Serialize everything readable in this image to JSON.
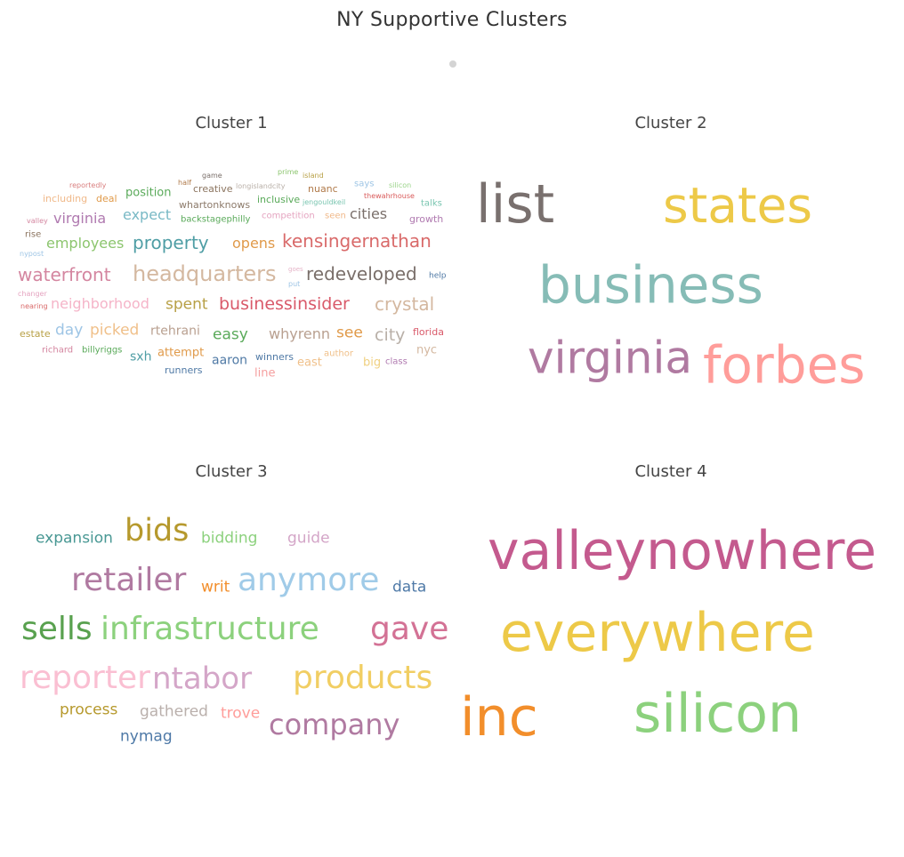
{
  "page": {
    "title": "NY Supportive Clusters"
  },
  "clusters": [
    {
      "title": "Cluster 1",
      "words": [
        {
          "text": "reportedly",
          "color": "#d97f7f"
        },
        {
          "text": "game",
          "color": "#7a6f6a"
        },
        {
          "text": "prime",
          "color": "#8cc56e"
        },
        {
          "text": "island",
          "color": "#b8a046"
        },
        {
          "text": "half",
          "color": "#b07a4a"
        },
        {
          "text": "creative",
          "color": "#8c7560"
        },
        {
          "text": "longislandcity",
          "color": "#b9b0a8"
        },
        {
          "text": "nuanc",
          "color": "#b07a4a"
        },
        {
          "text": "says",
          "color": "#9ec5e5"
        },
        {
          "text": "silicon",
          "color": "#9bd48a"
        },
        {
          "text": "including",
          "color": "#f0b98a"
        },
        {
          "text": "deal",
          "color": "#e09a4a"
        },
        {
          "text": "position",
          "color": "#5aaa5a"
        },
        {
          "text": "whartonknows",
          "color": "#8c7a6a"
        },
        {
          "text": "inclusive",
          "color": "#5aaa5a"
        },
        {
          "text": "jengouldkeil",
          "color": "#79c5b0"
        },
        {
          "text": "thewahrhouse",
          "color": "#d95a5a"
        },
        {
          "text": "talks",
          "color": "#79c5b0"
        },
        {
          "text": "valley",
          "color": "#d486a0"
        },
        {
          "text": "virginia",
          "color": "#b07ab0"
        },
        {
          "text": "expect",
          "color": "#79b9c5"
        },
        {
          "text": "backstagephilly",
          "color": "#5aaa5a"
        },
        {
          "text": "competition",
          "color": "#e5a4c0"
        },
        {
          "text": "seen",
          "color": "#f0b98a"
        },
        {
          "text": "cities",
          "color": "#7a6f6a"
        },
        {
          "text": "growth",
          "color": "#b07ab0"
        },
        {
          "text": "rise",
          "color": "#8c7560"
        },
        {
          "text": "employees",
          "color": "#8cc56e"
        },
        {
          "text": "property",
          "color": "#4f9ea5"
        },
        {
          "text": "opens",
          "color": "#e09a4a"
        },
        {
          "text": "kensingernathan",
          "color": "#d96a6a"
        },
        {
          "text": "nypost",
          "color": "#9ec5e5"
        },
        {
          "text": "waterfront",
          "color": "#d486a0"
        },
        {
          "text": "headquarters",
          "color": "#d4b8a0"
        },
        {
          "text": "goes",
          "color": "#e5b4c8"
        },
        {
          "text": "put",
          "color": "#9ec5e5"
        },
        {
          "text": "redeveloped",
          "color": "#7a6f6a"
        },
        {
          "text": "help",
          "color": "#4f79a5"
        },
        {
          "text": "changer",
          "color": "#e5a4c0"
        },
        {
          "text": "nearing",
          "color": "#d96a6a"
        },
        {
          "text": "neighborhood",
          "color": "#f5b4c8"
        },
        {
          "text": "spent",
          "color": "#b8a046"
        },
        {
          "text": "businessinsider",
          "color": "#d95a6a"
        },
        {
          "text": "crystal",
          "color": "#d4b8a0"
        },
        {
          "text": "estate",
          "color": "#b8a046"
        },
        {
          "text": "day",
          "color": "#9ec5e5"
        },
        {
          "text": "picked",
          "color": "#f0c08a"
        },
        {
          "text": "rtehrani",
          "color": "#b9a090"
        },
        {
          "text": "easy",
          "color": "#5aaa5a"
        },
        {
          "text": "whyrenn",
          "color": "#b9a090"
        },
        {
          "text": "see",
          "color": "#e09a4a"
        },
        {
          "text": "city",
          "color": "#b9b0a8"
        },
        {
          "text": "florida",
          "color": "#d95a6a"
        },
        {
          "text": "richard",
          "color": "#d486a0"
        },
        {
          "text": "billyriggs",
          "color": "#5aaa5a"
        },
        {
          "text": "sxh",
          "color": "#4f9ea5"
        },
        {
          "text": "attempt",
          "color": "#e09a4a"
        },
        {
          "text": "aaron",
          "color": "#4f79a5"
        },
        {
          "text": "winners",
          "color": "#4f79a5"
        },
        {
          "text": "east",
          "color": "#f0c08a"
        },
        {
          "text": "author",
          "color": "#f0c08a"
        },
        {
          "text": "big",
          "color": "#f0d080"
        },
        {
          "text": "class",
          "color": "#b07ab0"
        },
        {
          "text": "nyc",
          "color": "#d4b8a0"
        },
        {
          "text": "runners",
          "color": "#4f79a5"
        },
        {
          "text": "line",
          "color": "#f5a0a0"
        }
      ]
    },
    {
      "title": "Cluster 2",
      "words": [
        {
          "text": "list",
          "color": "#79706e"
        },
        {
          "text": "states",
          "color": "#edc948"
        },
        {
          "text": "business",
          "color": "#86bcb6"
        },
        {
          "text": "virginia",
          "color": "#b07aa1"
        },
        {
          "text": "forbes",
          "color": "#ff9d9a"
        }
      ]
    },
    {
      "title": "Cluster 3",
      "words": [
        {
          "text": "expansion",
          "color": "#499894"
        },
        {
          "text": "bids",
          "color": "#b6992d"
        },
        {
          "text": "bidding",
          "color": "#8cd17d"
        },
        {
          "text": "guide",
          "color": "#d4a6c8"
        },
        {
          "text": "retailer",
          "color": "#b07aa1"
        },
        {
          "text": "writ",
          "color": "#f28e2b"
        },
        {
          "text": "anymore",
          "color": "#a0cbe8"
        },
        {
          "text": "data",
          "color": "#4e79a7"
        },
        {
          "text": "sells",
          "color": "#59a14f"
        },
        {
          "text": "infrastructure",
          "color": "#8cd17d"
        },
        {
          "text": "gave",
          "color": "#d37295"
        },
        {
          "text": "reporter",
          "color": "#fabfd2"
        },
        {
          "text": "ntabor",
          "color": "#d4a6c8"
        },
        {
          "text": "products",
          "color": "#f1ce63"
        },
        {
          "text": "process",
          "color": "#b6992d"
        },
        {
          "text": "gathered",
          "color": "#bab0ac"
        },
        {
          "text": "trove",
          "color": "#ff9d9a"
        },
        {
          "text": "company",
          "color": "#b07aa1"
        },
        {
          "text": "nymag",
          "color": "#4e79a7"
        }
      ]
    },
    {
      "title": "Cluster 4",
      "words": [
        {
          "text": "valleynowhere",
          "color": "#c45a8e"
        },
        {
          "text": "everywhere",
          "color": "#edc948"
        },
        {
          "text": "inc",
          "color": "#f28e2b"
        },
        {
          "text": "silicon",
          "color": "#8cd17d"
        }
      ]
    }
  ]
}
